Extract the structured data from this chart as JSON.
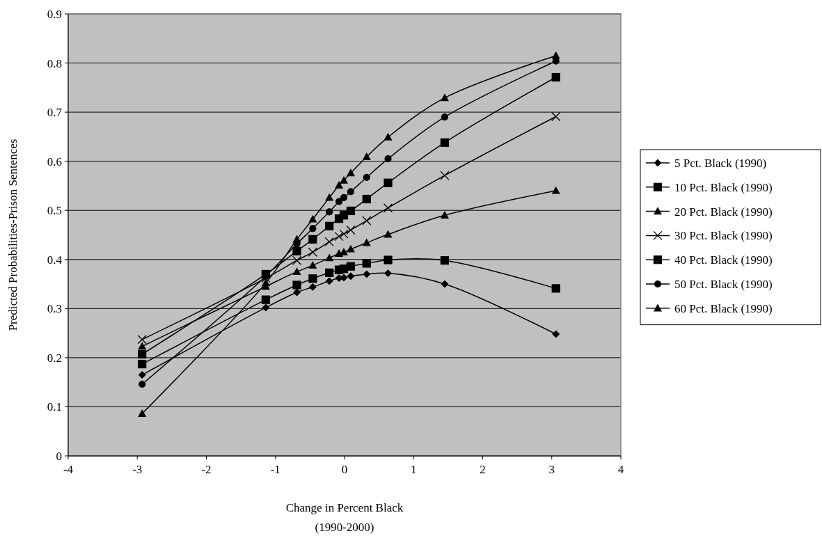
{
  "chart_data": {
    "type": "line",
    "xlabel": "Change in Percent Black\n(1990-2000)",
    "ylabel": "Predicted Probabilities-Prison Sentences",
    "x": [
      -2.93,
      -1.14,
      -0.69,
      -0.46,
      -0.22,
      -0.08,
      -0.01,
      0.09,
      0.32,
      0.63,
      1.45,
      3.06
    ],
    "xlim": [
      -4,
      4
    ],
    "xticks": [
      -4,
      -3,
      -2,
      -1,
      0,
      1,
      2,
      3,
      4
    ],
    "ylim": [
      0,
      0.9
    ],
    "yticks": [
      0,
      0.1,
      0.2,
      0.3,
      0.4,
      0.5,
      0.6,
      0.7,
      0.8,
      0.9
    ],
    "grid": "y",
    "legend": "right",
    "line_style": "solid",
    "series": [
      {
        "name": "5 Pct. Black (1990)",
        "color": "#000000",
        "marker": "diamond",
        "values": [
          0.165,
          0.302,
          0.333,
          0.344,
          0.356,
          0.362,
          0.363,
          0.366,
          0.37,
          0.372,
          0.35,
          0.248
        ]
      },
      {
        "name": "10 Pct. Black (1990)",
        "color": "#000000",
        "marker": "square",
        "values": [
          0.187,
          0.318,
          0.348,
          0.361,
          0.373,
          0.379,
          0.381,
          0.386,
          0.392,
          0.399,
          0.398,
          0.341
        ]
      },
      {
        "name": "20 Pct. Black (1990)",
        "color": "#000000",
        "marker": "triangle",
        "values": [
          0.223,
          0.345,
          0.375,
          0.388,
          0.403,
          0.412,
          0.415,
          0.421,
          0.434,
          0.451,
          0.49,
          0.54
        ]
      },
      {
        "name": "30 Pct. Black (1990)",
        "color": "#000000",
        "marker": "cross",
        "values": [
          0.237,
          0.362,
          0.398,
          0.415,
          0.436,
          0.447,
          0.452,
          0.46,
          0.479,
          0.505,
          0.571,
          0.691
        ]
      },
      {
        "name": "40 Pct. Black (1990)",
        "color": "#000000",
        "marker": "square",
        "values": [
          0.207,
          0.37,
          0.417,
          0.441,
          0.468,
          0.483,
          0.49,
          0.499,
          0.523,
          0.556,
          0.638,
          0.771
        ]
      },
      {
        "name": "50 Pct. Black (1990)",
        "color": "#000000",
        "marker": "circle",
        "values": [
          0.146,
          0.366,
          0.432,
          0.463,
          0.497,
          0.518,
          0.526,
          0.538,
          0.567,
          0.605,
          0.69,
          0.804
        ]
      },
      {
        "name": "60 Pct. Black (1990)",
        "color": "#000000",
        "marker": "triangle",
        "values": [
          0.086,
          0.352,
          0.441,
          0.482,
          0.526,
          0.551,
          0.561,
          0.576,
          0.609,
          0.649,
          0.729,
          0.815
        ]
      }
    ]
  }
}
